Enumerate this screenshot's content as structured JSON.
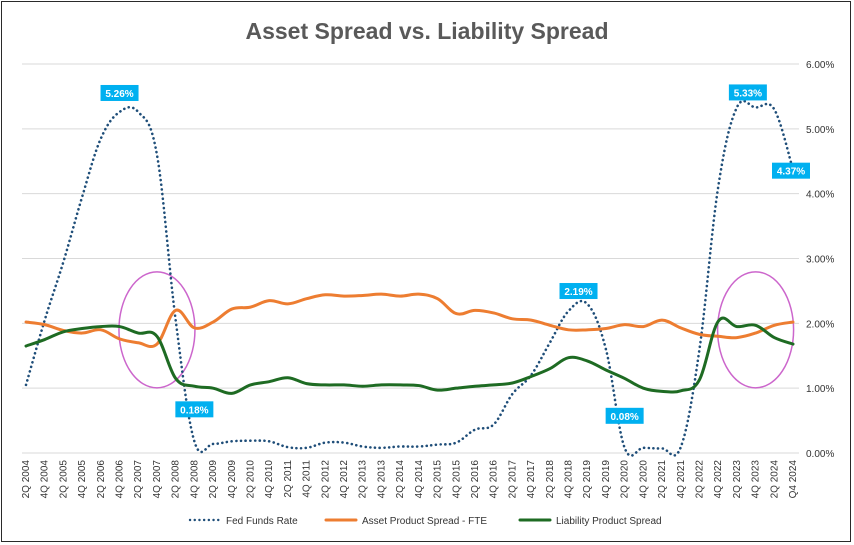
{
  "chart_data": {
    "type": "line",
    "title": "Asset Spread vs. Liability Spread",
    "xlabel": "",
    "ylabel": "",
    "ylim": [
      0,
      6
    ],
    "y_ticks": [
      "0.00%",
      "1.00%",
      "2.00%",
      "3.00%",
      "4.00%",
      "5.00%",
      "6.00%"
    ],
    "grid": true,
    "legend": "bottom",
    "categories": [
      "2Q 2004",
      "4Q 2004",
      "2Q 2005",
      "4Q 2005",
      "2Q 2006",
      "4Q 2006",
      "2Q 2007",
      "4Q 2007",
      "2Q 2008",
      "4Q 2008",
      "2Q 2009",
      "4Q 2009",
      "2Q 2010",
      "4Q 2010",
      "2Q 2011",
      "4Q 2011",
      "2Q 2012",
      "4Q 2012",
      "2Q 2013",
      "4Q 2013",
      "2Q 2014",
      "4Q 2014",
      "2Q 2015",
      "4Q 2015",
      "2Q 2016",
      "4Q 2016",
      "2Q 2017",
      "4Q 2017",
      "2Q 2018",
      "4Q 2018",
      "2Q 2019",
      "4Q 2019",
      "2Q 2020",
      "4Q 2020",
      "2Q 2021",
      "4Q 2021",
      "2Q 2022",
      "4Q 2022",
      "2Q 2023",
      "4Q 2023",
      "2Q 2024",
      "Q4 2024"
    ],
    "series": [
      {
        "name": "Fed Funds Rate",
        "color": "#1F4E79",
        "style": "dotted",
        "values": [
          1.05,
          2.05,
          2.95,
          3.95,
          4.85,
          5.26,
          5.26,
          4.6,
          2.05,
          0.18,
          0.14,
          0.18,
          0.19,
          0.18,
          0.09,
          0.08,
          0.16,
          0.16,
          0.1,
          0.08,
          0.1,
          0.1,
          0.13,
          0.16,
          0.36,
          0.44,
          0.91,
          1.2,
          1.7,
          2.19,
          2.3,
          1.6,
          0.08,
          0.08,
          0.07,
          0.09,
          1.6,
          4.1,
          5.33,
          5.33,
          5.3,
          4.37
        ]
      },
      {
        "name": "Asset Product Spread - FTE",
        "color": "#ED7D31",
        "style": "solid",
        "values": [
          2.02,
          1.98,
          1.89,
          1.85,
          1.9,
          1.76,
          1.7,
          1.68,
          2.2,
          1.93,
          2.02,
          2.22,
          2.25,
          2.35,
          2.3,
          2.38,
          2.44,
          2.42,
          2.43,
          2.45,
          2.42,
          2.45,
          2.38,
          2.15,
          2.2,
          2.16,
          2.07,
          2.05,
          1.97,
          1.9,
          1.9,
          1.92,
          1.98,
          1.95,
          2.05,
          1.93,
          1.83,
          1.8,
          1.78,
          1.85,
          1.97,
          2.02
        ]
      },
      {
        "name": "Liability Product Spread",
        "color": "#1E6B23",
        "style": "solid",
        "values": [
          1.65,
          1.75,
          1.87,
          1.92,
          1.95,
          1.95,
          1.85,
          1.8,
          1.15,
          1.03,
          1.0,
          0.92,
          1.05,
          1.1,
          1.16,
          1.07,
          1.05,
          1.05,
          1.03,
          1.05,
          1.05,
          1.04,
          0.97,
          1.0,
          1.03,
          1.05,
          1.08,
          1.18,
          1.3,
          1.47,
          1.42,
          1.28,
          1.15,
          1.0,
          0.95,
          0.96,
          1.13,
          2.03,
          1.95,
          1.97,
          1.78,
          1.68
        ]
      }
    ],
    "annotations": [
      {
        "text": "5.26%",
        "series": "Fed Funds Rate",
        "category": "4Q 2006"
      },
      {
        "text": "0.18%",
        "series": "Fed Funds Rate",
        "category": "4Q 2008"
      },
      {
        "text": "2.19%",
        "series": "Fed Funds Rate",
        "category": "4Q 2018"
      },
      {
        "text": "0.08%",
        "series": "Fed Funds Rate",
        "category": "2Q 2020"
      },
      {
        "text": "5.33%",
        "series": "Fed Funds Rate",
        "category": "2Q 2023"
      },
      {
        "text": "4.37%",
        "series": "Fed Funds Rate",
        "category": "Q4 2024"
      }
    ],
    "highlight_circles": [
      {
        "around": "4Q 2007",
        "color": "#CC66CC"
      },
      {
        "around": "4Q 2023",
        "color": "#CC66CC"
      }
    ],
    "annotation_color": "#00B0F0"
  }
}
